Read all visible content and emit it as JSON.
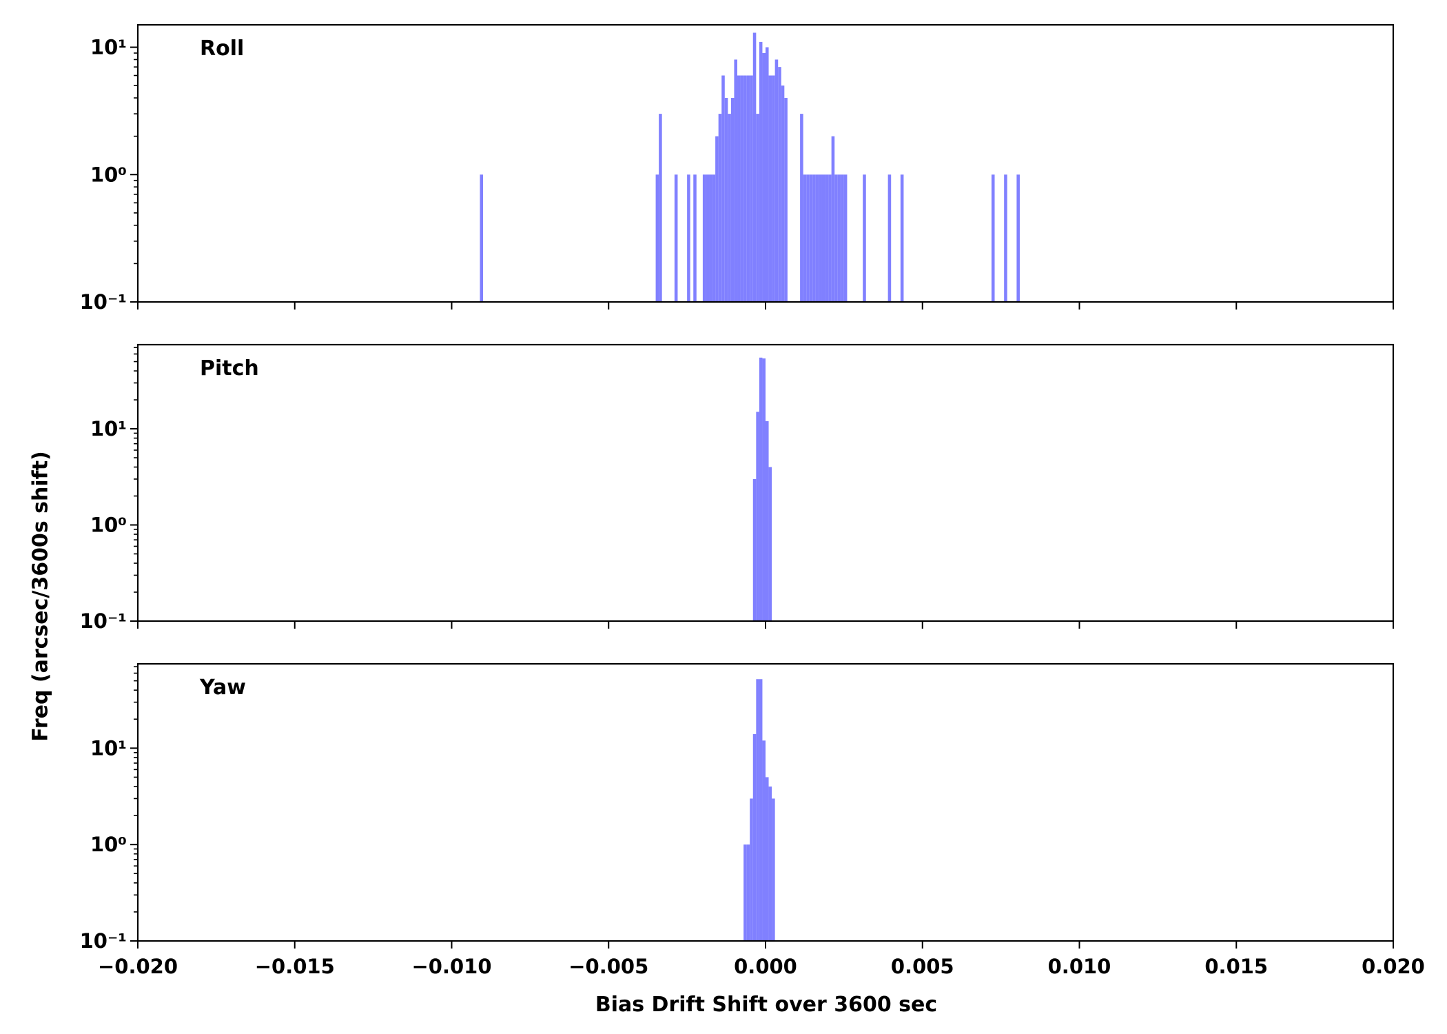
{
  "chart_data": {
    "type": "bar",
    "subtype": "histogram",
    "xlabel": "Bias Drift Shift over 3600 sec",
    "ylabel": "Freq (arcsec/3600s shift)",
    "xlim": [
      -0.02,
      0.02
    ],
    "x_ticks": [
      "−0.020",
      "−0.015",
      "−0.010",
      "−0.005",
      "0.000",
      "0.005",
      "0.010",
      "0.015",
      "0.020"
    ],
    "y_scale": "log",
    "bin_width": 0.0001,
    "bar_color": "#8080ff",
    "grid": false,
    "panels": [
      {
        "name": "Roll",
        "ylim": [
          0.1,
          15
        ],
        "y_ticks": [
          0.1,
          1,
          10
        ],
        "bins": [
          {
            "x": -0.0091,
            "count": 1
          },
          {
            "x": -0.0035,
            "count": 1
          },
          {
            "x": -0.0034,
            "count": 3
          },
          {
            "x": -0.0029,
            "count": 1
          },
          {
            "x": -0.0025,
            "count": 1
          },
          {
            "x": -0.0023,
            "count": 1
          },
          {
            "x": -0.002,
            "count": 1
          },
          {
            "x": -0.0019,
            "count": 1
          },
          {
            "x": -0.0018,
            "count": 1
          },
          {
            "x": -0.0017,
            "count": 1
          },
          {
            "x": -0.0016,
            "count": 2
          },
          {
            "x": -0.0015,
            "count": 3
          },
          {
            "x": -0.0014,
            "count": 6
          },
          {
            "x": -0.0013,
            "count": 4
          },
          {
            "x": -0.0012,
            "count": 3
          },
          {
            "x": -0.0011,
            "count": 4
          },
          {
            "x": -0.001,
            "count": 8
          },
          {
            "x": -0.0009,
            "count": 6
          },
          {
            "x": -0.0008,
            "count": 6
          },
          {
            "x": -0.0007,
            "count": 6
          },
          {
            "x": -0.0006,
            "count": 6
          },
          {
            "x": -0.0005,
            "count": 6
          },
          {
            "x": -0.0004,
            "count": 13
          },
          {
            "x": -0.0003,
            "count": 3
          },
          {
            "x": -0.0002,
            "count": 11
          },
          {
            "x": -0.0001,
            "count": 9
          },
          {
            "x": 0.0,
            "count": 10
          },
          {
            "x": 0.0001,
            "count": 6
          },
          {
            "x": 0.0002,
            "count": 6
          },
          {
            "x": 0.0003,
            "count": 8
          },
          {
            "x": 0.0004,
            "count": 7
          },
          {
            "x": 0.0005,
            "count": 5
          },
          {
            "x": 0.0006,
            "count": 4
          },
          {
            "x": 0.0007,
            "count": 0
          },
          {
            "x": 0.0008,
            "count": 0
          },
          {
            "x": 0.0011,
            "count": 3
          },
          {
            "x": 0.0012,
            "count": 1
          },
          {
            "x": 0.0013,
            "count": 1
          },
          {
            "x": 0.0014,
            "count": 1
          },
          {
            "x": 0.0015,
            "count": 1
          },
          {
            "x": 0.0016,
            "count": 1
          },
          {
            "x": 0.0017,
            "count": 1
          },
          {
            "x": 0.0018,
            "count": 1
          },
          {
            "x": 0.0019,
            "count": 1
          },
          {
            "x": 0.002,
            "count": 1
          },
          {
            "x": 0.0021,
            "count": 2
          },
          {
            "x": 0.0022,
            "count": 1
          },
          {
            "x": 0.0023,
            "count": 1
          },
          {
            "x": 0.0024,
            "count": 1
          },
          {
            "x": 0.0025,
            "count": 1
          },
          {
            "x": 0.0031,
            "count": 1
          },
          {
            "x": 0.0039,
            "count": 1
          },
          {
            "x": 0.0043,
            "count": 1
          },
          {
            "x": 0.0072,
            "count": 1
          },
          {
            "x": 0.0076,
            "count": 1
          },
          {
            "x": 0.008,
            "count": 1
          }
        ]
      },
      {
        "name": "Pitch",
        "ylim": [
          0.1,
          75
        ],
        "y_ticks": [
          0.1,
          1,
          10
        ],
        "bins": [
          {
            "x": -0.0004,
            "count": 3
          },
          {
            "x": -0.0003,
            "count": 15
          },
          {
            "x": -0.0002,
            "count": 55
          },
          {
            "x": -0.0001,
            "count": 54
          },
          {
            "x": 0.0,
            "count": 12
          },
          {
            "x": 0.0001,
            "count": 4
          }
        ]
      },
      {
        "name": "Yaw",
        "ylim": [
          0.1,
          75
        ],
        "y_ticks": [
          0.1,
          1,
          10
        ],
        "bins": [
          {
            "x": -0.0007,
            "count": 1
          },
          {
            "x": -0.0006,
            "count": 1
          },
          {
            "x": -0.0005,
            "count": 3
          },
          {
            "x": -0.0004,
            "count": 14
          },
          {
            "x": -0.0003,
            "count": 52
          },
          {
            "x": -0.0002,
            "count": 52
          },
          {
            "x": -0.0001,
            "count": 12
          },
          {
            "x": 0.0,
            "count": 5
          },
          {
            "x": 0.0001,
            "count": 4
          },
          {
            "x": 0.0002,
            "count": 3
          }
        ]
      }
    ]
  }
}
